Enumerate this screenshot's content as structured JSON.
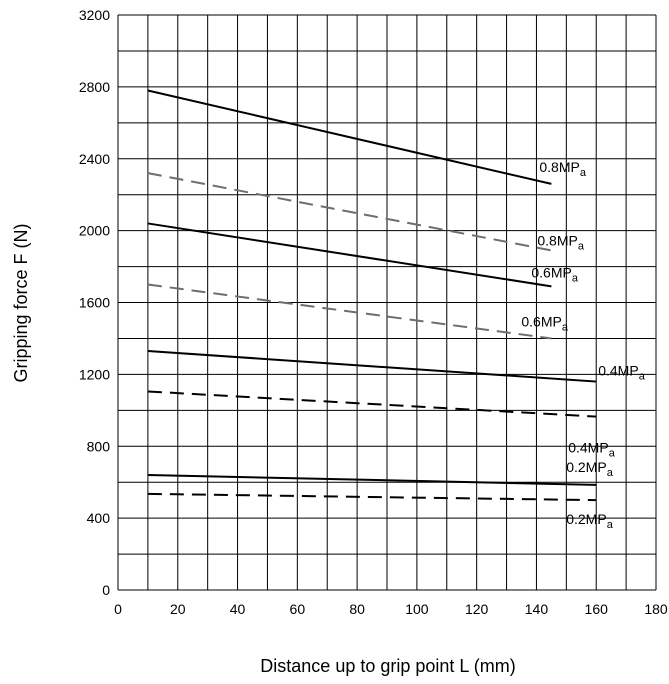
{
  "chart_data": {
    "type": "line",
    "xlabel": "Distance up to grip point L (mm)",
    "ylabel": "Gripping force F (N)",
    "xlim": [
      0,
      180
    ],
    "ylim": [
      0,
      3200
    ],
    "x_ticks": [
      0,
      20,
      40,
      60,
      80,
      100,
      120,
      140,
      160,
      180
    ],
    "y_ticks": [
      0,
      400,
      800,
      1200,
      1600,
      2000,
      2400,
      2800,
      3200
    ],
    "grid": true,
    "series": [
      {
        "label": "0.8MPa",
        "style": "solid",
        "color": "#000000",
        "x": [
          10,
          145
        ],
        "y": [
          2780,
          2260
        ]
      },
      {
        "label": "0.8MPa",
        "style": "dashed",
        "color": "#6e6e6e",
        "x": [
          10,
          145
        ],
        "y": [
          2320,
          1890
        ]
      },
      {
        "label": "0.6MPa",
        "style": "solid",
        "color": "#000000",
        "x": [
          10,
          145
        ],
        "y": [
          2040,
          1690
        ]
      },
      {
        "label": "0.6MPa",
        "style": "dashed",
        "color": "#6e6e6e",
        "x": [
          10,
          145
        ],
        "y": [
          1700,
          1400
        ]
      },
      {
        "label": "0.4MPa",
        "style": "solid",
        "color": "#000000",
        "x": [
          10,
          160
        ],
        "y": [
          1330,
          1160
        ]
      },
      {
        "label": "0.4MPa",
        "style": "dashed",
        "color": "#000000",
        "x": [
          10,
          160
        ],
        "y": [
          1105,
          965
        ]
      },
      {
        "label": "0.2MPa",
        "style": "solid",
        "color": "#000000",
        "x": [
          10,
          160
        ],
        "y": [
          640,
          585
        ]
      },
      {
        "label": "0.2MPa",
        "style": "dashed",
        "color": "#000000",
        "x": [
          10,
          160
        ],
        "y": [
          535,
          500
        ]
      }
    ]
  }
}
